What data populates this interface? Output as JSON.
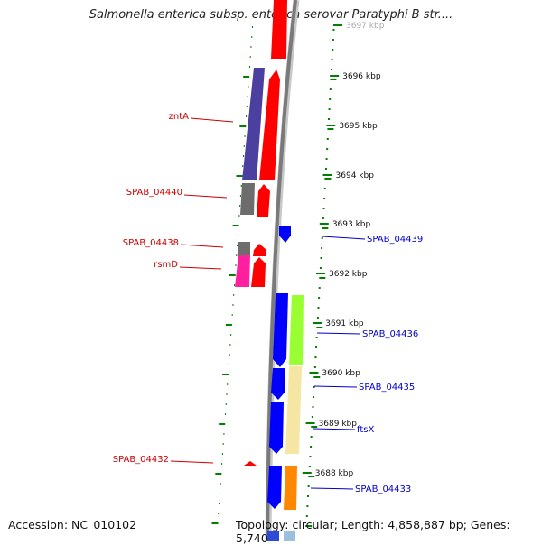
{
  "title": "Salmonella enterica subsp. enterica serovar Paratyphi B str....",
  "accession": "Accession: NC_010102",
  "topology": "Topology: circular; Length: 4,858,887 bp; Genes: 5,740",
  "colors": {
    "backbone": "#888888",
    "left_label": "#cc0000",
    "right_label": "#0000cc",
    "ticks": "#008000",
    "red": "#ff0000",
    "blue": "#0000ff",
    "purple": "#4b3f9f",
    "gray": "#6d6d6d",
    "magenta": "#ff1f9f",
    "lime": "#99ff33",
    "wheat": "#f5e6a3",
    "orange": "#ff8800"
  },
  "ruler": [
    {
      "label": "3697 kbp",
      "faded": true
    },
    {
      "label": "3696 kbp"
    },
    {
      "label": "3695 kbp"
    },
    {
      "label": "3694 kbp"
    },
    {
      "label": "3693 kbp"
    },
    {
      "label": "3692 kbp"
    },
    {
      "label": "3691 kbp"
    },
    {
      "label": "3690 kbp"
    },
    {
      "label": "3689 kbp"
    },
    {
      "label": "3688 kbp"
    }
  ],
  "gene_labels_left": [
    {
      "label": "zntA"
    },
    {
      "label": "SPAB_04440"
    },
    {
      "label": "SPAB_04438"
    },
    {
      "label": "rsmD"
    },
    {
      "label": "SPAB_04432"
    }
  ],
  "gene_labels_right": [
    {
      "label": "SPAB_04439"
    },
    {
      "label": "SPAB_04436"
    },
    {
      "label": "SPAB_04435"
    },
    {
      "label": "ftsX"
    },
    {
      "label": "SPAB_04433"
    }
  ]
}
